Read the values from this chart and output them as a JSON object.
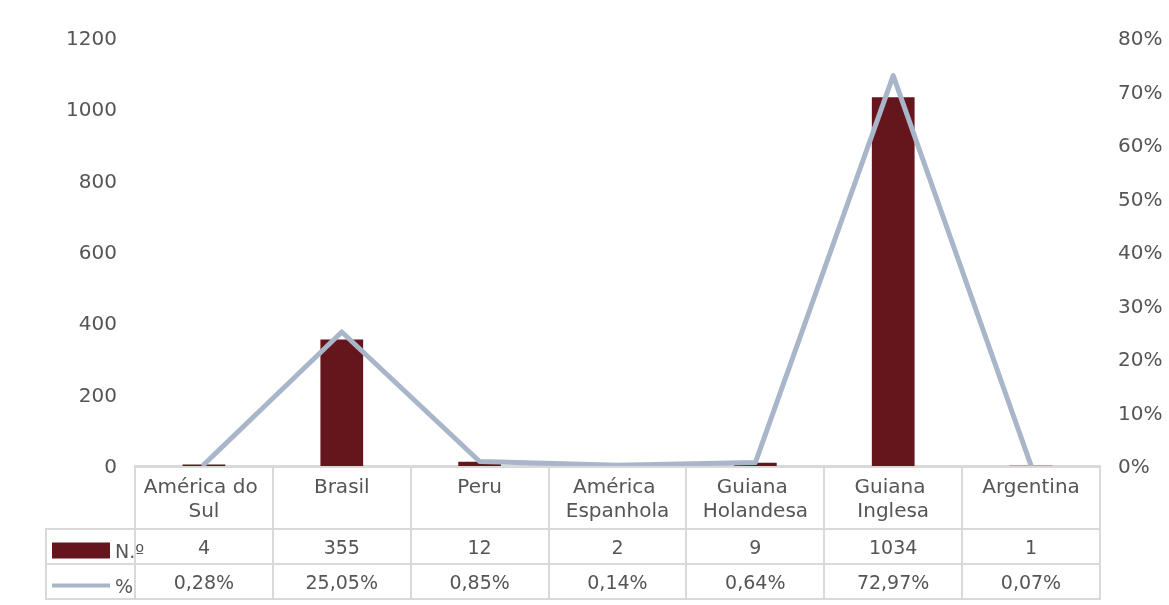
{
  "chart_data": {
    "type": "bar",
    "categories": [
      "América do Sul",
      "Brasil",
      "Peru",
      "América Espanhola",
      "Guiana Holandesa",
      "Guiana Inglesa",
      "Argentina"
    ],
    "series": [
      {
        "name": "N.º",
        "color": "#65161c",
        "values": [
          4,
          355,
          12,
          2,
          9,
          1034,
          1
        ],
        "value_labels": [
          "4",
          "355",
          "12",
          "2",
          "9",
          "1034",
          "1"
        ]
      },
      {
        "name": "%",
        "type": "line",
        "axis": "y2",
        "color": "#a9b5c9",
        "values": [
          0.28,
          25.05,
          0.85,
          0.14,
          0.64,
          72.97,
          0.07
        ],
        "value_labels": [
          "0,28%",
          "25,05%",
          "0,85%",
          "0,14%",
          "0,64%",
          "72,97%",
          "0,07%"
        ]
      }
    ],
    "ylim": [
      0,
      1200
    ],
    "yticks": [
      0,
      200,
      400,
      600,
      800,
      1000,
      1200
    ],
    "y2lim": [
      0,
      80
    ],
    "y2ticks": [
      {
        "value": 0,
        "label": "0%"
      },
      {
        "value": 10,
        "label": "10%"
      },
      {
        "value": 20,
        "label": "20%"
      },
      {
        "value": 30,
        "label": "30%"
      },
      {
        "value": 40,
        "label": "40%"
      },
      {
        "value": 50,
        "label": "50%"
      },
      {
        "value": 60,
        "label": "60%"
      },
      {
        "value": 70,
        "label": "70%"
      },
      {
        "value": 80,
        "label": "80%"
      }
    ],
    "grid": false,
    "legend": "bottom left",
    "marker": "none",
    "line_style": "solid"
  }
}
